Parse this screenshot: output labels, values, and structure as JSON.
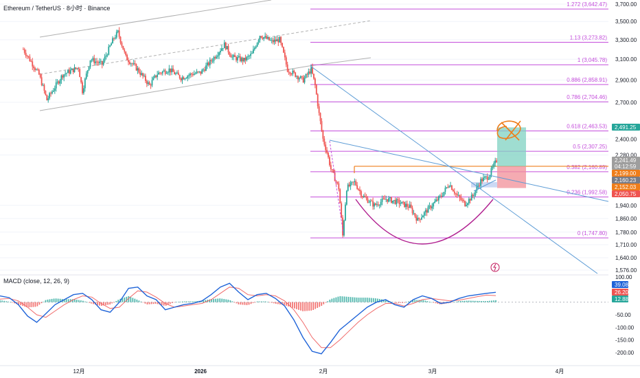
{
  "header": {
    "symbol_title": "Ethereum / TetherUS · 8小时 · Binance"
  },
  "colors": {
    "up": "#26a69a",
    "down": "#ef5350",
    "fib": "#c44ddb",
    "trend": "#5b9bd5",
    "channel": "#b0b0b0",
    "arc": "#b01e8f",
    "macd": "#1e63d8",
    "signal": "#f06a6a",
    "target_box": "#7fd1c2",
    "stop_box": "#f28f98",
    "annotation": "#ef7d1a"
  },
  "chart_data": [
    {
      "type": "candlestick",
      "title": "Ethereum / TetherUS · 8小时 · Binance",
      "x_ticks": [
        "12月",
        "2026",
        "2月",
        "3月",
        "4月"
      ],
      "y_ticks": [
        "3,700.00",
        "3,500.00",
        "3,300.00",
        "3,100.00",
        "2,900.00",
        "2,700.00",
        "2,400.00",
        "2,280.00",
        "1,940.00",
        "1,860.00",
        "1,780.00",
        "1,710.00",
        "1,640.00",
        "1,576.00"
      ],
      "ylim": [
        1550,
        3700
      ],
      "y_scale": "log",
      "price_path": [
        [
          "11-16",
          3200
        ],
        [
          "11-20",
          2950
        ],
        [
          "11-22",
          2720
        ],
        [
          "11-26",
          2950
        ],
        [
          "11-30",
          3020
        ],
        [
          "12-01",
          2800
        ],
        [
          "12-03",
          3100
        ],
        [
          "12-06",
          3050
        ],
        [
          "12-09",
          3320
        ],
        [
          "12-10",
          3380
        ],
        [
          "12-12",
          3120
        ],
        [
          "12-15",
          3000
        ],
        [
          "12-18",
          2850
        ],
        [
          "12-20",
          2960
        ],
        [
          "12-23",
          3000
        ],
        [
          "12-26",
          2920
        ],
        [
          "12-29",
          2960
        ],
        [
          "12-31",
          2970
        ],
        [
          "01-03",
          3100
        ],
        [
          "01-06",
          3250
        ],
        [
          "01-08",
          3120
        ],
        [
          "01-11",
          3090
        ],
        [
          "01-13",
          3150
        ],
        [
          "01-15",
          3350
        ],
        [
          "01-18",
          3280
        ],
        [
          "01-20",
          3300
        ],
        [
          "01-22",
          3000
        ],
        [
          "01-24",
          2950
        ],
        [
          "01-26",
          2900
        ],
        [
          "01-28",
          3000
        ],
        [
          "01-29",
          2850
        ],
        [
          "01-30",
          2600
        ],
        [
          "01-31",
          2400
        ],
        [
          "02-01",
          2300
        ],
        [
          "02-02",
          2180
        ],
        [
          "02-04",
          2050
        ],
        [
          "02-05",
          1760
        ],
        [
          "02-06",
          2050
        ],
        [
          "02-08",
          2090
        ],
        [
          "02-10",
          2000
        ],
        [
          "02-13",
          1940
        ],
        [
          "02-16",
          1980
        ],
        [
          "02-19",
          1960
        ],
        [
          "02-22",
          1930
        ],
        [
          "02-24",
          1850
        ],
        [
          "02-26",
          1900
        ],
        [
          "02-28",
          1950
        ],
        [
          "03-02",
          2000
        ],
        [
          "03-04",
          2080
        ],
        [
          "03-06",
          2000
        ],
        [
          "03-08",
          1950
        ],
        [
          "03-10",
          2000
        ],
        [
          "03-12",
          2100
        ],
        [
          "03-14",
          2130
        ],
        [
          "03-16",
          2241.49
        ]
      ],
      "fibonacci": [
        {
          "label": "1.272 (3,642.47)",
          "value": 3642.47
        },
        {
          "label": "1.13 (3,273.82)",
          "value": 3273.82
        },
        {
          "label": "1 (3,045.78)",
          "value": 3045.78
        },
        {
          "label": "0.886 (2,858.91)",
          "value": 2858.91
        },
        {
          "label": "0.786 (2,704.46)",
          "value": 2704.46
        },
        {
          "label": "0.618 (2,463.53)",
          "value": 2463.53
        },
        {
          "label": "0.5 (2,307.25)",
          "value": 2307.25
        },
        {
          "label": "0.382 (2,160.89)",
          "value": 2160.89
        },
        {
          "label": "0.236 (1,992.58)",
          "value": 1992.58
        },
        {
          "label": "0 (1,747.80)",
          "value": 1747.8
        }
      ],
      "price_badges": [
        {
          "label": "2,491.25",
          "value": 2491.25,
          "color": "#26a69a"
        },
        {
          "label": "2,241.49",
          "value": 2241.49,
          "color": "#9e9e9e"
        },
        {
          "label": "04:12:59",
          "value": 2219,
          "color": "#9e9e9e"
        },
        {
          "label": "2,199.00",
          "value": 2199,
          "color": "#ef7d1a"
        },
        {
          "label": "2,160.23",
          "value": 2160.23,
          "color": "#787b86"
        },
        {
          "label": "2,152.03",
          "value": 2152.03,
          "color": "#ef7d1a"
        },
        {
          "label": "2,050.75",
          "value": 2050.75,
          "color": "#ef5350"
        }
      ],
      "position_tool": {
        "target": 2491.25,
        "entry": 2199.0,
        "stop": 2050.75
      },
      "horizontal_level": 2199.0
    },
    {
      "type": "line",
      "title": "MACD (close, 12, 26, 9)",
      "y_ticks": [
        "100.00",
        "-50.00",
        "-100.00",
        "-150.00",
        "-200.00"
      ],
      "ylim": [
        -215,
        110
      ],
      "series": [
        {
          "values": [
            25,
            18,
            -10,
            -55,
            -80,
            -45,
            -10,
            10,
            30,
            35,
            10,
            -30,
            -40,
            0,
            55,
            60,
            25,
            10,
            -30,
            -20,
            -10,
            -5,
            5,
            30,
            60,
            75,
            40,
            10,
            30,
            35,
            15,
            -15,
            -70,
            -140,
            -195,
            -205,
            -160,
            -110,
            -80,
            -50,
            -20,
            0,
            10,
            -10,
            -20,
            10,
            25,
            15,
            -5,
            0,
            15,
            25,
            30,
            35,
            39.08
          ]
        },
        {
          "values": [
            12,
            15,
            5,
            -20,
            -50,
            -60,
            -35,
            -10,
            10,
            25,
            20,
            -5,
            -25,
            -20,
            15,
            45,
            40,
            20,
            -5,
            -20,
            -15,
            -10,
            -5,
            10,
            35,
            60,
            55,
            30,
            25,
            30,
            25,
            5,
            -30,
            -80,
            -140,
            -180,
            -180,
            -150,
            -115,
            -80,
            -50,
            -25,
            -5,
            -5,
            -15,
            -5,
            10,
            15,
            10,
            5,
            8,
            15,
            22,
            28,
            26.2
          ]
        }
      ],
      "value_badges": [
        "39.08",
        "26.20",
        "12.88"
      ]
    }
  ]
}
